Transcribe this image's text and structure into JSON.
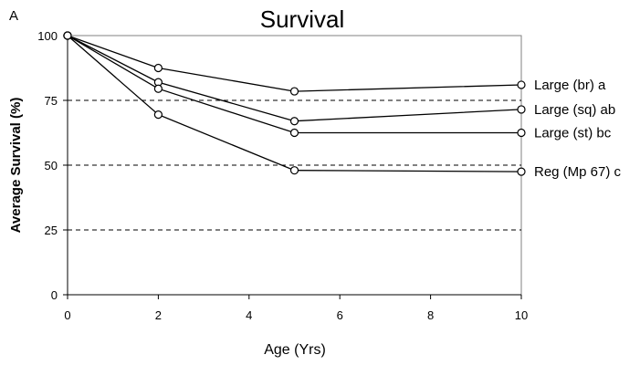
{
  "panel_label": "A",
  "chart_data": {
    "type": "line",
    "title": "Survival",
    "xlabel": "Age (Yrs)",
    "ylabel": "Average Survival (%)",
    "xlim": [
      0,
      10
    ],
    "ylim": [
      0,
      100
    ],
    "x_ticks": [
      0,
      2,
      4,
      6,
      8,
      10
    ],
    "y_ticks": [
      0,
      25,
      50,
      75,
      100
    ],
    "grid": "dashed horizontal at 25, 50, 75",
    "legend": "series labels at line ends, right",
    "x": [
      0,
      2,
      5,
      10
    ],
    "series": [
      {
        "name": "Large (br) a",
        "values": [
          100,
          87.5,
          78.5,
          81
        ]
      },
      {
        "name": "Large (sq) ab",
        "values": [
          100,
          82,
          67,
          71.5
        ]
      },
      {
        "name": "Large (st) bc",
        "values": [
          100,
          79.5,
          62.5,
          62.5
        ]
      },
      {
        "name": "Reg (Mp 67) c",
        "values": [
          100,
          69.5,
          48,
          47.5
        ]
      }
    ]
  }
}
